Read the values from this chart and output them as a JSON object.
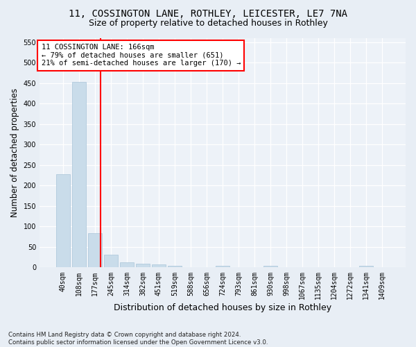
{
  "title_line1": "11, COSSINGTON LANE, ROTHLEY, LEICESTER, LE7 7NA",
  "title_line2": "Size of property relative to detached houses in Rothley",
  "xlabel": "Distribution of detached houses by size in Rothley",
  "ylabel": "Number of detached properties",
  "footnote": "Contains HM Land Registry data © Crown copyright and database right 2024.\nContains public sector information licensed under the Open Government Licence v3.0.",
  "bar_labels": [
    "40sqm",
    "108sqm",
    "177sqm",
    "245sqm",
    "314sqm",
    "382sqm",
    "451sqm",
    "519sqm",
    "588sqm",
    "656sqm",
    "724sqm",
    "793sqm",
    "861sqm",
    "930sqm",
    "998sqm",
    "1067sqm",
    "1135sqm",
    "1204sqm",
    "1272sqm",
    "1341sqm",
    "1409sqm"
  ],
  "bar_values": [
    228,
    453,
    83,
    32,
    13,
    10,
    7,
    5,
    0,
    0,
    4,
    0,
    0,
    4,
    0,
    0,
    0,
    0,
    0,
    4,
    0
  ],
  "bar_color": "#c9dcea",
  "bar_edgecolor": "#a8c4d8",
  "red_line_x": 2,
  "annotation_text": "11 COSSINGTON LANE: 166sqm\n← 79% of detached houses are smaller (651)\n21% of semi-detached houses are larger (170) →",
  "annotation_box_color": "white",
  "annotation_box_edgecolor": "red",
  "red_line_color": "red",
  "ylim": [
    0,
    560
  ],
  "yticks": [
    0,
    50,
    100,
    150,
    200,
    250,
    300,
    350,
    400,
    450,
    500,
    550
  ],
  "bg_color": "#e8eef5",
  "plot_bg_color": "#edf2f8",
  "grid_color": "white",
  "title1_fontsize": 10,
  "title2_fontsize": 9,
  "xlabel_fontsize": 9,
  "ylabel_fontsize": 8.5,
  "tick_fontsize": 7,
  "annotation_fontsize": 7.5,
  "footnote_fontsize": 6.2
}
